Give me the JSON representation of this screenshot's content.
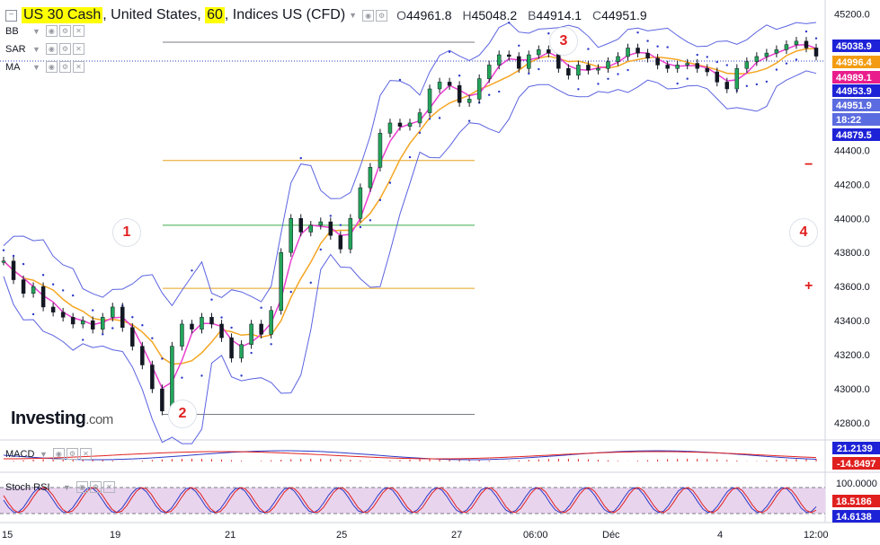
{
  "header": {
    "symbol": "US 30 Cash",
    "country": "United States",
    "interval": "60",
    "market": "Indices US (CFD)",
    "open_label": "O",
    "open": "44961.8",
    "high_label": "H",
    "high": "45048.2",
    "low_label": "B",
    "low": "44914.1",
    "close_label": "C",
    "close": "44951.9"
  },
  "indicators": [
    "BB",
    "SAR",
    "MA"
  ],
  "logo": {
    "main": "Investing",
    "suffix": ".com"
  },
  "markers": [
    "1",
    "2",
    "3",
    "4"
  ],
  "zoom": {
    "minus": "−",
    "plus": "+"
  },
  "chart_data": [
    {
      "type": "line",
      "title": "",
      "ylim": [
        42700,
        45250
      ],
      "y_ticks": [
        "45200.0",
        "44400.0",
        "44200.0",
        "44000.0",
        "43800.0",
        "43600.0",
        "43400.0",
        "43200.0",
        "43000.0",
        "42800.0"
      ],
      "x_ticks": [
        "15",
        "19",
        "21",
        "25",
        "27",
        "06:00",
        "Déc",
        "4",
        "12:00"
      ],
      "price_labels": [
        {
          "value": "45038.9",
          "color": "#1e22d6"
        },
        {
          "value": "44996.4",
          "color": "#f39c12"
        },
        {
          "value": "44989.1",
          "color": "#e91e8c"
        },
        {
          "value": "44953.9",
          "color": "#1e22d6"
        },
        {
          "value": "44951.9",
          "color": "#5b6be0"
        },
        {
          "value": "18:22",
          "color": "#5b6be0"
        },
        {
          "value": "44879.5",
          "color": "#1e22d6"
        }
      ],
      "horizontal_levels": [
        {
          "value": 44340,
          "color": "#e6a11c"
        },
        {
          "value": 43960,
          "color": "#3fae49"
        },
        {
          "value": 43590,
          "color": "#e6a11c"
        },
        {
          "value": 42850,
          "color": "#787b86"
        }
      ],
      "series": [
        {
          "name": "",
          "color": "#131722",
          "values": [
            43750,
            43640,
            43560,
            43600,
            43480,
            43450,
            43420,
            43380,
            43400,
            43350,
            43420,
            43480,
            43360,
            43250,
            43140,
            43000,
            42870,
            43250,
            43380,
            43350,
            43420,
            43380,
            43300,
            43180,
            43260,
            43380,
            43320,
            43460,
            43800,
            44000,
            43920,
            43960,
            43980,
            43900,
            43820,
            44000,
            44180,
            44300,
            44500,
            44560,
            44540,
            44560,
            44620,
            44760,
            44800,
            44780,
            44680,
            44700,
            44820,
            44900,
            44960,
            44950,
            44880,
            44960,
            44990,
            44970,
            44880,
            44840,
            44900,
            44870,
            44880,
            44920,
            44950,
            45000,
            44970,
            44940,
            44900,
            44880,
            44900,
            44910,
            44880,
            44860,
            44800,
            44760,
            44880,
            44920,
            44950,
            44970,
            44990,
            45020,
            45040,
            45000,
            44952
          ]
        }
      ]
    },
    {
      "type": "line",
      "title": "MACD",
      "values_shown": [
        "21.2139",
        "-14.8497"
      ]
    },
    {
      "type": "line",
      "title": "Stoch RSI",
      "values_shown": [
        "100.0000",
        "18.5186",
        "14.6138"
      ]
    }
  ]
}
